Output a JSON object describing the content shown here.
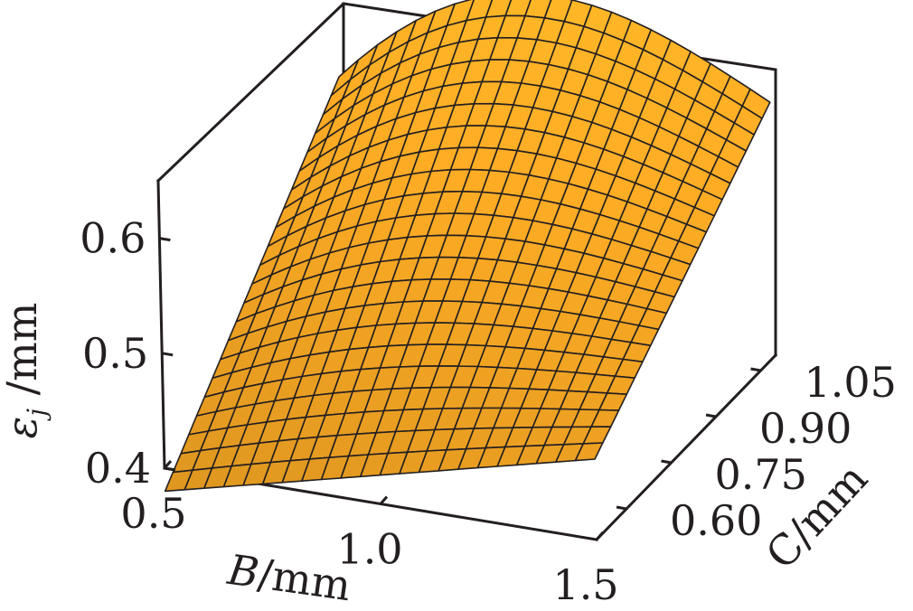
{
  "chart_data": {
    "type": "surface3d",
    "x": {
      "label_var": "B",
      "label_unit": "/mm",
      "range": [
        0.5,
        1.5
      ],
      "ticks": [
        0.5,
        1.0,
        1.5
      ],
      "tick_labels": [
        "0.5",
        "1.0",
        "1.5"
      ]
    },
    "y": {
      "label_var": "C",
      "label_unit": "/mm",
      "range": [
        0.5,
        1.1
      ],
      "ticks": [
        0.6,
        0.75,
        0.9,
        1.05
      ],
      "tick_labels": [
        "0.60",
        "0.75",
        "0.90",
        "1.05"
      ]
    },
    "z": {
      "label_var": "ε",
      "label_sub": "j",
      "label_unit": " /mm",
      "range": [
        0.4,
        0.65
      ],
      "ticks": [
        0.4,
        0.5,
        0.6
      ],
      "tick_labels": [
        "0.4",
        "0.5",
        "0.6"
      ]
    },
    "surface": {
      "x_range": [
        0.5,
        1.5
      ],
      "y_range": [
        0.5,
        1.1
      ],
      "grid": [
        22,
        22
      ],
      "corner_values": {
        "b0.5_c0.5": 0.38,
        "b1.5_c0.5": 0.47,
        "b0.5_c1.1": 0.58,
        "b1.5_c1.1": 0.62
      },
      "color": "#f5a623",
      "edge_color": "#231f20"
    },
    "grid_lines": false,
    "legend": "none"
  }
}
